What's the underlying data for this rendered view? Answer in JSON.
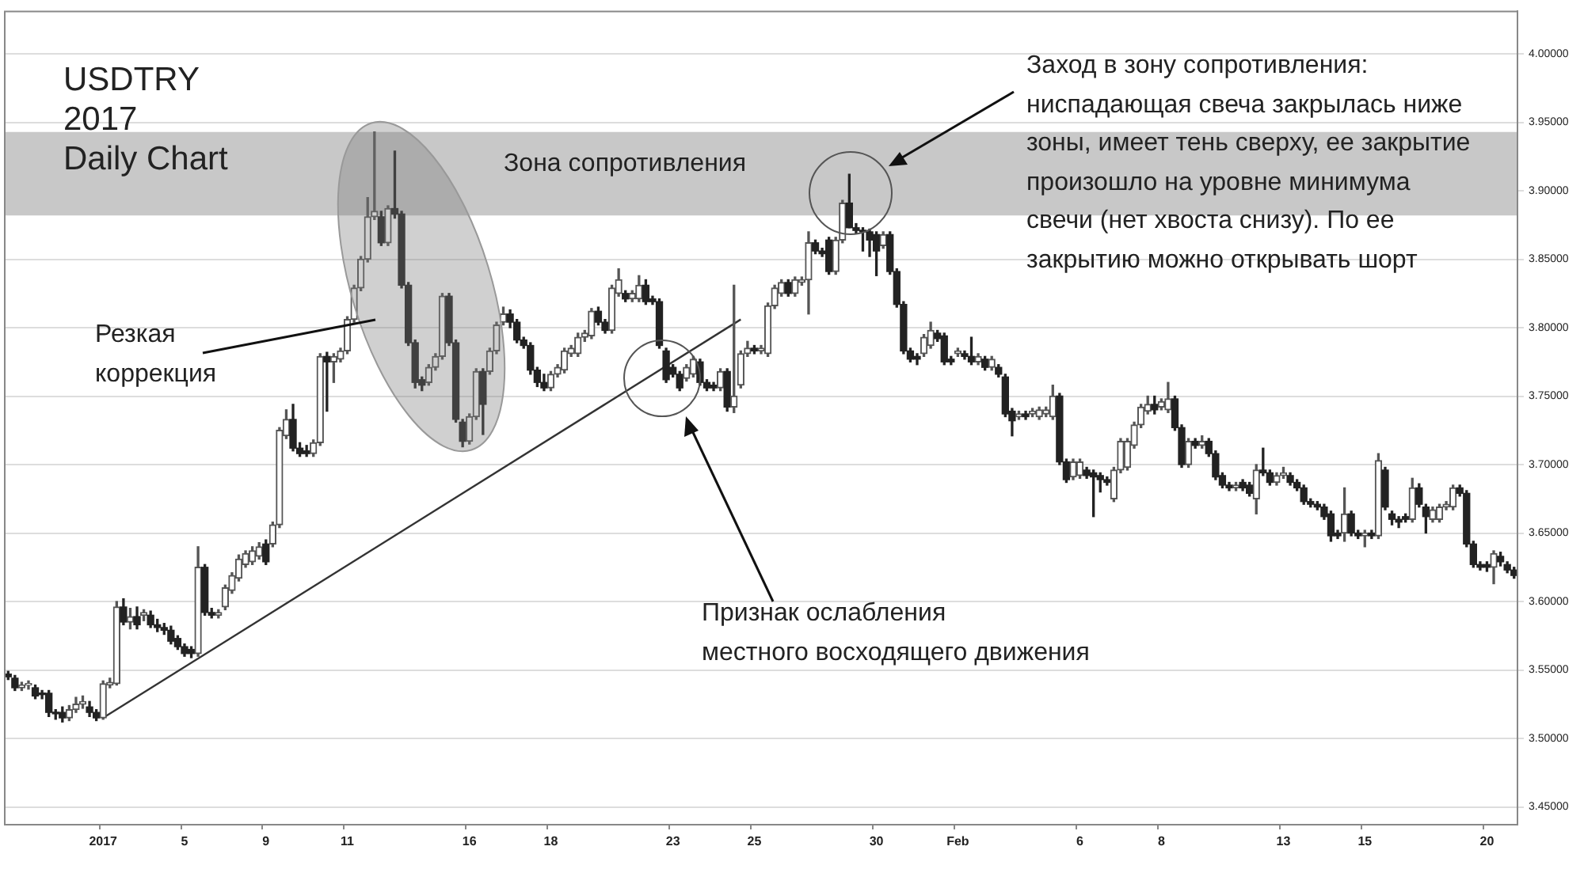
{
  "chart_data": {
    "type": "candlestick",
    "title": "USDTRY\n2017\nDaily Chart",
    "categories": [
      null,
      null,
      null,
      null,
      null,
      null,
      null,
      null,
      null,
      null,
      null,
      null,
      null,
      null,
      "2017",
      null,
      null,
      null,
      null,
      null,
      null,
      null,
      null,
      null,
      null,
      null,
      "5",
      null,
      null,
      null,
      null,
      null,
      null,
      null,
      null,
      null,
      null,
      null,
      "9",
      null,
      null,
      null,
      null,
      null,
      null,
      null,
      null,
      null,
      null,
      null,
      "11",
      null,
      null,
      null,
      null,
      null,
      null,
      null,
      null,
      null,
      null,
      null,
      null,
      null,
      null,
      null,
      null,
      null,
      "16",
      null,
      null,
      null,
      null,
      null,
      null,
      null,
      null,
      null,
      null,
      null,
      "18",
      null,
      null,
      null,
      null,
      null,
      null,
      null,
      null,
      null,
      null,
      null,
      null,
      null,
      null,
      null,
      null,
      null,
      "23",
      null,
      null,
      null,
      null,
      null,
      null,
      null,
      null,
      null,
      null,
      null,
      "25",
      null,
      null,
      null,
      null,
      null,
      null,
      null,
      null,
      null,
      null,
      null,
      null,
      null,
      null,
      null,
      null,
      null,
      "30",
      null,
      null,
      null,
      null,
      null,
      null,
      null,
      null,
      null,
      null,
      null,
      "Feb",
      null,
      null,
      null,
      null,
      null,
      null,
      null,
      null,
      null,
      null,
      null,
      null,
      null,
      null,
      null,
      null,
      null,
      "6",
      null,
      null,
      null,
      null,
      null,
      null,
      null,
      null,
      null,
      null,
      null,
      "8",
      null,
      null,
      null,
      null,
      null,
      null,
      null,
      null,
      null,
      null,
      null,
      null,
      null,
      null,
      null,
      null,
      null,
      "13",
      null,
      null,
      null,
      null,
      null,
      null,
      null,
      null,
      null,
      null,
      null,
      "15",
      null,
      null,
      null,
      null,
      null,
      null,
      null,
      null,
      null,
      null,
      null,
      null,
      null,
      null,
      null,
      null,
      null,
      "20",
      null,
      null,
      null,
      null
    ],
    "colors": [
      "#222222",
      "#222222",
      "#555555",
      "#555555",
      "#222222",
      "#222222",
      "#222222",
      "#222222",
      "#222222",
      "#555555",
      "#555555",
      "#555555",
      "#222222",
      "#222222",
      "#555555",
      "#555555",
      "#555555",
      "#222222",
      "#555555",
      "#222222",
      "#555555",
      "#222222",
      "#222222",
      "#222222",
      "#222222",
      "#222222",
      "#222222",
      "#222222",
      "#555555",
      "#222222",
      "#222222",
      "#555555",
      "#555555",
      "#555555",
      "#555555",
      "#555555",
      "#555555",
      "#555555",
      "#222222",
      "#555555",
      "#555555",
      "#555555",
      "#222222",
      "#222222",
      "#222222",
      "#555555",
      "#555555",
      "#222222",
      "#555555",
      "#555555",
      "#555555",
      "#555555",
      "#555555",
      "#555555",
      "#555555",
      "#222222",
      "#555555",
      "#222222",
      "#222222",
      "#222222",
      "#222222",
      "#222222",
      "#555555",
      "#555555",
      "#555555",
      "#222222",
      "#222222",
      "#222222",
      "#555555",
      "#555555",
      "#222222",
      "#555555",
      "#555555",
      "#555555",
      "#222222",
      "#222222",
      "#222222",
      "#222222",
      "#222222",
      "#222222",
      "#555555",
      "#555555",
      "#555555",
      "#555555",
      "#555555",
      "#555555",
      "#555555",
      "#222222",
      "#222222",
      "#555555",
      "#555555",
      "#222222",
      "#555555",
      "#555555",
      "#222222",
      "#222222",
      "#222222",
      "#222222",
      "#222222",
      "#222222",
      "#555555",
      "#555555",
      "#222222",
      "#222222",
      "#222222",
      "#555555",
      "#222222",
      "#555555",
      "#555555",
      "#555555",
      "#222222",
      "#555555",
      "#555555",
      "#555555",
      "#555555",
      "#222222",
      "#555555",
      "#555555",
      "#555555",
      "#222222",
      "#222222",
      "#222222",
      "#555555",
      "#555555",
      "#222222",
      "#222222",
      "#222222",
      "#222222",
      "#222222",
      "#555555",
      "#222222",
      "#222222",
      "#222222",
      "#222222",
      "#222222",
      "#555555",
      "#555555",
      "#222222",
      "#222222",
      "#222222",
      "#555555",
      "#222222",
      "#222222",
      "#555555",
      "#222222",
      "#555555",
      "#222222",
      "#222222",
      "#222222",
      "#555555",
      "#222222",
      "#555555",
      "#555555",
      "#555555",
      "#555555",
      "#222222",
      "#222222",
      "#555555",
      "#555555",
      "#222222",
      "#222222",
      "#222222",
      "#222222",
      "#555555",
      "#555555",
      "#555555",
      "#555555",
      "#555555",
      "#555555",
      "#222222",
      "#555555",
      "#555555",
      "#222222",
      "#222222",
      "#555555",
      "#222222",
      "#555555",
      "#222222",
      "#222222",
      "#222222",
      "#222222",
      "#555555",
      "#222222",
      "#222222",
      "#555555",
      "#222222",
      "#222222",
      "#555555",
      "#555555",
      "#222222",
      "#222222",
      "#222222",
      "#222222",
      "#222222",
      "#222222",
      "#222222",
      "#222222",
      "#555555",
      "#222222",
      "#222222",
      "#555555",
      "#222222",
      "#555555",
      "#222222",
      "#222222",
      "#222222",
      "#222222",
      "#555555",
      "#222222",
      "#222222",
      "#555555",
      "#555555",
      "#555555",
      "#555555",
      "#222222",
      "#222222",
      "#222222",
      "#222222",
      "#222222",
      "#555555",
      "#222222",
      "#222222",
      "#222222"
    ],
    "ohlc": [
      [
        3.547,
        3.549,
        3.543,
        3.545
      ],
      [
        3.544,
        3.546,
        3.535,
        3.537
      ],
      [
        3.537,
        3.541,
        3.535,
        3.539
      ],
      [
        3.539,
        3.542,
        3.536,
        3.54
      ],
      [
        3.537,
        3.539,
        3.529,
        3.531
      ],
      [
        3.533,
        3.535,
        3.529,
        3.532
      ],
      [
        3.533,
        3.535,
        3.516,
        3.519
      ],
      [
        3.519,
        3.521,
        3.514,
        3.518
      ],
      [
        3.519,
        3.523,
        3.512,
        3.515
      ],
      [
        3.515,
        3.524,
        3.513,
        3.521
      ],
      [
        3.521,
        3.53,
        3.519,
        3.525
      ],
      [
        3.525,
        3.531,
        3.522,
        3.527
      ],
      [
        3.523,
        3.527,
        3.516,
        3.519
      ],
      [
        3.519,
        3.521,
        3.513,
        3.515
      ],
      [
        3.515,
        3.542,
        3.514,
        3.54
      ],
      [
        3.539,
        3.544,
        3.537,
        3.541
      ],
      [
        3.54,
        3.6,
        3.539,
        3.596
      ],
      [
        3.596,
        3.602,
        3.583,
        3.585
      ],
      [
        3.585,
        3.595,
        3.58,
        3.589
      ],
      [
        3.589,
        3.596,
        3.58,
        3.583
      ],
      [
        3.59,
        3.594,
        3.586,
        3.592
      ],
      [
        3.59,
        3.593,
        3.581,
        3.583
      ],
      [
        3.583,
        3.587,
        3.578,
        3.581
      ],
      [
        3.581,
        3.584,
        3.576,
        3.579
      ],
      [
        3.579,
        3.582,
        3.569,
        3.571
      ],
      [
        3.573,
        3.575,
        3.565,
        3.567
      ],
      [
        3.567,
        3.569,
        3.56,
        3.562
      ],
      [
        3.565,
        3.567,
        3.559,
        3.562
      ],
      [
        3.562,
        3.64,
        3.56,
        3.625
      ],
      [
        3.625,
        3.627,
        3.59,
        3.592
      ],
      [
        3.592,
        3.595,
        3.588,
        3.59
      ],
      [
        3.59,
        3.594,
        3.588,
        3.592
      ],
      [
        3.596,
        3.612,
        3.594,
        3.61
      ],
      [
        3.608,
        3.621,
        3.606,
        3.619
      ],
      [
        3.617,
        3.634,
        3.615,
        3.631
      ],
      [
        3.627,
        3.637,
        3.625,
        3.635
      ],
      [
        3.629,
        3.64,
        3.627,
        3.637
      ],
      [
        3.633,
        3.643,
        3.631,
        3.64
      ],
      [
        3.642,
        3.645,
        3.627,
        3.629
      ],
      [
        3.642,
        3.658,
        3.64,
        3.656
      ],
      [
        3.656,
        3.727,
        3.654,
        3.725
      ],
      [
        3.721,
        3.74,
        3.719,
        3.733
      ],
      [
        3.733,
        3.744,
        3.71,
        3.712
      ],
      [
        3.712,
        3.716,
        3.706,
        3.708
      ],
      [
        3.71,
        3.714,
        3.706,
        3.708
      ],
      [
        3.708,
        3.718,
        3.706,
        3.716
      ],
      [
        3.716,
        3.781,
        3.714,
        3.779
      ],
      [
        3.779,
        3.782,
        3.739,
        3.775
      ],
      [
        3.775,
        3.781,
        3.76,
        3.779
      ],
      [
        3.777,
        3.785,
        3.775,
        3.783
      ],
      [
        3.783,
        3.808,
        3.781,
        3.806
      ],
      [
        3.806,
        3.831,
        3.804,
        3.829
      ],
      [
        3.829,
        3.852,
        3.827,
        3.85
      ],
      [
        3.85,
        3.895,
        3.848,
        3.881
      ],
      [
        3.881,
        3.943,
        3.879,
        3.885
      ],
      [
        3.881,
        3.885,
        3.86,
        3.862
      ],
      [
        3.862,
        3.889,
        3.86,
        3.887
      ],
      [
        3.887,
        3.929,
        3.88,
        3.883
      ],
      [
        3.883,
        3.885,
        3.829,
        3.831
      ],
      [
        3.831,
        3.833,
        3.787,
        3.789
      ],
      [
        3.789,
        3.791,
        3.756,
        3.76
      ],
      [
        3.762,
        3.764,
        3.754,
        3.758
      ],
      [
        3.76,
        3.773,
        3.758,
        3.771
      ],
      [
        3.771,
        3.781,
        3.769,
        3.779
      ],
      [
        3.779,
        3.825,
        3.777,
        3.823
      ],
      [
        3.823,
        3.825,
        3.787,
        3.789
      ],
      [
        3.789,
        3.791,
        3.731,
        3.733
      ],
      [
        3.731,
        3.733,
        3.713,
        3.717
      ],
      [
        3.717,
        3.737,
        3.715,
        3.735
      ],
      [
        3.735,
        3.77,
        3.733,
        3.768
      ],
      [
        3.768,
        3.77,
        3.722,
        3.744
      ],
      [
        3.768,
        3.785,
        3.766,
        3.783
      ],
      [
        3.783,
        3.804,
        3.781,
        3.802
      ],
      [
        3.804,
        3.815,
        3.802,
        3.81
      ],
      [
        3.81,
        3.813,
        3.8,
        3.804
      ],
      [
        3.804,
        3.806,
        3.789,
        3.791
      ],
      [
        3.791,
        3.793,
        3.785,
        3.787
      ],
      [
        3.787,
        3.789,
        3.766,
        3.769
      ],
      [
        3.769,
        3.771,
        3.757,
        3.76
      ],
      [
        3.76,
        3.766,
        3.754,
        3.756
      ],
      [
        3.756,
        3.768,
        3.754,
        3.766
      ],
      [
        3.766,
        3.773,
        3.764,
        3.771
      ],
      [
        3.769,
        3.785,
        3.767,
        3.783
      ],
      [
        3.781,
        3.787,
        3.779,
        3.785
      ],
      [
        3.781,
        3.796,
        3.779,
        3.793
      ],
      [
        3.793,
        3.798,
        3.79,
        3.796
      ],
      [
        3.794,
        3.814,
        3.792,
        3.812
      ],
      [
        3.812,
        3.815,
        3.802,
        3.804
      ],
      [
        3.804,
        3.806,
        3.796,
        3.798
      ],
      [
        3.798,
        3.831,
        3.796,
        3.829
      ],
      [
        3.825,
        3.843,
        3.823,
        3.835
      ],
      [
        3.825,
        3.827,
        3.819,
        3.821
      ],
      [
        3.821,
        3.827,
        3.819,
        3.825
      ],
      [
        3.821,
        3.838,
        3.819,
        3.831
      ],
      [
        3.831,
        3.835,
        3.817,
        3.819
      ],
      [
        3.821,
        3.823,
        3.817,
        3.819
      ],
      [
        3.819,
        3.821,
        3.785,
        3.787
      ],
      [
        3.783,
        3.785,
        3.76,
        3.762
      ],
      [
        3.771,
        3.773,
        3.764,
        3.766
      ],
      [
        3.766,
        3.768,
        3.754,
        3.756
      ],
      [
        3.763,
        3.773,
        3.761,
        3.771
      ],
      [
        3.766,
        3.779,
        3.764,
        3.777
      ],
      [
        3.775,
        3.777,
        3.758,
        3.76
      ],
      [
        3.76,
        3.762,
        3.754,
        3.756
      ],
      [
        3.758,
        3.76,
        3.754,
        3.756
      ],
      [
        3.756,
        3.77,
        3.754,
        3.768
      ],
      [
        3.768,
        3.77,
        3.739,
        3.742
      ],
      [
        3.742,
        3.831,
        3.738,
        3.75
      ],
      [
        3.758,
        3.783,
        3.756,
        3.781
      ],
      [
        3.781,
        3.79,
        3.779,
        3.785
      ],
      [
        3.785,
        3.787,
        3.781,
        3.783
      ],
      [
        3.783,
        3.787,
        3.781,
        3.785
      ],
      [
        3.781,
        3.818,
        3.779,
        3.816
      ],
      [
        3.816,
        3.831,
        3.814,
        3.829
      ],
      [
        3.825,
        3.835,
        3.823,
        3.833
      ],
      [
        3.833,
        3.835,
        3.823,
        3.825
      ],
      [
        3.825,
        3.837,
        3.823,
        3.835
      ],
      [
        3.833,
        3.837,
        3.831,
        3.835
      ],
      [
        3.835,
        3.87,
        3.81,
        3.862
      ],
      [
        3.862,
        3.864,
        3.854,
        3.856
      ],
      [
        3.856,
        3.858,
        3.852,
        3.854
      ],
      [
        3.864,
        3.866,
        3.839,
        3.841
      ],
      [
        3.841,
        3.866,
        3.839,
        3.864
      ],
      [
        3.864,
        3.893,
        3.862,
        3.891
      ],
      [
        3.891,
        3.912,
        3.873,
        3.873
      ],
      [
        3.873,
        3.876,
        3.869,
        3.871
      ],
      [
        3.871,
        3.873,
        3.856,
        3.87
      ],
      [
        3.87,
        3.872,
        3.852,
        3.864
      ],
      [
        3.868,
        3.87,
        3.838,
        3.856
      ],
      [
        3.86,
        3.87,
        3.858,
        3.868
      ],
      [
        3.868,
        3.87,
        3.839,
        3.841
      ],
      [
        3.841,
        3.843,
        3.815,
        3.817
      ],
      [
        3.817,
        3.819,
        3.781,
        3.783
      ],
      [
        3.783,
        3.785,
        3.775,
        3.777
      ],
      [
        3.779,
        3.781,
        3.773,
        3.777
      ],
      [
        3.781,
        3.795,
        3.779,
        3.793
      ],
      [
        3.787,
        3.804,
        3.785,
        3.798
      ],
      [
        3.796,
        3.798,
        3.79,
        3.792
      ],
      [
        3.794,
        3.796,
        3.773,
        3.775
      ],
      [
        3.777,
        3.779,
        3.773,
        3.775
      ],
      [
        3.781,
        3.785,
        3.779,
        3.783
      ],
      [
        3.781,
        3.783,
        3.777,
        3.779
      ],
      [
        3.779,
        3.793,
        3.773,
        3.775
      ],
      [
        3.775,
        3.781,
        3.773,
        3.779
      ],
      [
        3.777,
        3.779,
        3.769,
        3.771
      ],
      [
        3.771,
        3.779,
        3.769,
        3.777
      ],
      [
        3.771,
        3.773,
        3.764,
        3.766
      ],
      [
        3.764,
        3.766,
        3.735,
        3.737
      ],
      [
        3.739,
        3.741,
        3.721,
        3.732
      ],
      [
        3.735,
        3.739,
        3.733,
        3.737
      ],
      [
        3.737,
        3.739,
        3.733,
        3.735
      ],
      [
        3.737,
        3.741,
        3.735,
        3.739
      ],
      [
        3.735,
        3.742,
        3.733,
        3.74
      ],
      [
        3.737,
        3.742,
        3.735,
        3.74
      ],
      [
        3.735,
        3.758,
        3.733,
        3.75
      ],
      [
        3.75,
        3.752,
        3.7,
        3.702
      ],
      [
        3.702,
        3.704,
        3.687,
        3.689
      ],
      [
        3.691,
        3.704,
        3.689,
        3.702
      ],
      [
        3.692,
        3.704,
        3.69,
        3.702
      ],
      [
        3.696,
        3.698,
        3.69,
        3.692
      ],
      [
        3.694,
        3.696,
        3.662,
        3.691
      ],
      [
        3.692,
        3.694,
        3.68,
        3.689
      ],
      [
        3.689,
        3.691,
        3.685,
        3.687
      ],
      [
        3.675,
        3.698,
        3.673,
        3.696
      ],
      [
        3.696,
        3.719,
        3.694,
        3.717
      ],
      [
        3.698,
        3.719,
        3.696,
        3.717
      ],
      [
        3.714,
        3.731,
        3.712,
        3.729
      ],
      [
        3.729,
        3.744,
        3.727,
        3.742
      ],
      [
        3.739,
        3.75,
        3.737,
        3.744
      ],
      [
        3.744,
        3.75,
        3.737,
        3.74
      ],
      [
        3.742,
        3.748,
        3.74,
        3.746
      ],
      [
        3.74,
        3.76,
        3.738,
        3.748
      ],
      [
        3.748,
        3.75,
        3.725,
        3.727
      ],
      [
        3.727,
        3.729,
        3.698,
        3.7
      ],
      [
        3.7,
        3.719,
        3.698,
        3.717
      ],
      [
        3.717,
        3.719,
        3.712,
        3.714
      ],
      [
        3.714,
        3.721,
        3.712,
        3.717
      ],
      [
        3.717,
        3.719,
        3.706,
        3.708
      ],
      [
        3.708,
        3.71,
        3.689,
        3.691
      ],
      [
        3.692,
        3.694,
        3.683,
        3.685
      ],
      [
        3.685,
        3.687,
        3.681,
        3.683
      ],
      [
        3.683,
        3.687,
        3.681,
        3.685
      ],
      [
        3.687,
        3.689,
        3.681,
        3.683
      ],
      [
        3.685,
        3.687,
        3.677,
        3.679
      ],
      [
        3.675,
        3.7,
        3.664,
        3.696
      ],
      [
        3.696,
        3.712,
        3.692,
        3.694
      ],
      [
        3.694,
        3.696,
        3.685,
        3.687
      ],
      [
        3.687,
        3.694,
        3.685,
        3.692
      ],
      [
        3.692,
        3.698,
        3.69,
        3.694
      ],
      [
        3.692,
        3.694,
        3.685,
        3.687
      ],
      [
        3.687,
        3.689,
        3.681,
        3.683
      ],
      [
        3.683,
        3.685,
        3.671,
        3.673
      ],
      [
        3.673,
        3.675,
        3.669,
        3.671
      ],
      [
        3.671,
        3.673,
        3.667,
        3.669
      ],
      [
        3.669,
        3.671,
        3.66,
        3.662
      ],
      [
        3.664,
        3.666,
        3.644,
        3.648
      ],
      [
        3.65,
        3.652,
        3.646,
        3.648
      ],
      [
        3.65,
        3.683,
        3.644,
        3.664
      ],
      [
        3.664,
        3.666,
        3.648,
        3.65
      ],
      [
        3.65,
        3.652,
        3.646,
        3.648
      ],
      [
        3.648,
        3.652,
        3.64,
        3.65
      ],
      [
        3.65,
        3.652,
        3.646,
        3.648
      ],
      [
        3.648,
        3.708,
        3.646,
        3.703
      ],
      [
        3.696,
        3.698,
        3.667,
        3.669
      ],
      [
        3.664,
        3.666,
        3.656,
        3.66
      ],
      [
        3.66,
        3.662,
        3.654,
        3.658
      ],
      [
        3.662,
        3.664,
        3.658,
        3.66
      ],
      [
        3.66,
        3.69,
        3.658,
        3.683
      ],
      [
        3.683,
        3.686,
        3.669,
        3.671
      ],
      [
        3.669,
        3.671,
        3.65,
        3.662
      ],
      [
        3.66,
        3.669,
        3.658,
        3.667
      ],
      [
        3.66,
        3.671,
        3.658,
        3.669
      ],
      [
        3.669,
        3.673,
        3.667,
        3.671
      ],
      [
        3.669,
        3.685,
        3.667,
        3.683
      ],
      [
        3.683,
        3.685,
        3.677,
        3.679
      ],
      [
        3.679,
        3.681,
        3.64,
        3.642
      ],
      [
        3.642,
        3.644,
        3.625,
        3.627
      ],
      [
        3.627,
        3.629,
        3.623,
        3.625
      ],
      [
        3.627,
        3.629,
        3.622,
        3.625
      ],
      [
        3.625,
        3.637,
        3.613,
        3.635
      ],
      [
        3.633,
        3.636,
        3.626,
        3.629
      ],
      [
        3.627,
        3.629,
        3.621,
        3.623
      ],
      [
        3.623,
        3.625,
        3.617,
        3.619
      ]
    ],
    "series": [
      {
        "type": "line",
        "color": "#333333",
        "values": [
          null,
          null,
          null,
          null,
          null,
          null,
          null,
          null,
          null,
          null,
          null,
          null,
          null,
          null,
          3.515,
          null,
          null,
          null,
          null,
          null,
          null,
          null,
          null,
          null,
          null,
          null,
          null,
          null,
          null,
          null,
          null,
          null,
          null,
          null,
          null,
          null,
          null,
          null,
          null,
          null,
          null,
          null,
          null,
          null,
          null,
          null,
          null,
          null,
          null,
          null,
          null,
          null,
          null,
          null,
          null,
          null,
          null,
          null,
          null,
          null,
          null,
          null,
          null,
          null,
          null,
          null,
          null,
          null,
          null,
          null,
          null,
          null,
          null,
          null,
          null,
          null,
          null,
          null,
          null,
          null,
          null,
          null,
          null,
          null,
          null,
          null,
          null,
          null,
          null,
          null,
          null,
          null,
          null,
          null,
          null,
          null,
          null,
          null,
          null,
          null,
          null,
          null,
          null,
          null,
          null,
          null,
          null,
          null,
          3.806,
          null,
          null,
          null,
          null,
          null,
          null,
          null,
          null,
          null,
          null,
          null,
          null,
          null,
          null,
          null,
          null,
          null,
          null,
          null,
          null,
          null,
          null,
          null,
          null,
          null,
          null,
          null,
          null,
          null,
          null,
          null,
          null,
          null,
          null,
          null,
          null,
          null,
          null,
          null,
          null,
          null,
          null,
          null,
          null,
          null,
          null,
          null,
          null,
          null,
          null,
          null,
          null,
          null,
          null,
          null,
          null,
          null,
          null,
          null,
          null,
          null,
          null,
          null,
          null,
          null,
          null,
          null,
          null,
          null,
          null,
          null,
          null,
          null,
          null,
          null,
          null,
          null,
          null,
          null,
          null,
          null,
          null,
          null,
          null,
          null,
          null,
          null,
          null,
          null,
          null,
          null,
          null,
          null,
          null,
          null,
          null,
          null,
          null,
          null,
          null,
          null,
          null,
          null,
          null,
          null,
          null,
          null,
          null,
          null,
          null,
          null,
          null,
          null,
          null
        ]
      }
    ],
    "ylim": [
      3.437,
      4.031
    ],
    "yticks": [
      {
        "value": 3.45,
        "label": "3.45000"
      },
      {
        "value": 3.5,
        "label": "3.50000"
      },
      {
        "value": 3.55,
        "label": "3.55000"
      },
      {
        "value": 3.6,
        "label": "3.60000"
      },
      {
        "value": 3.65,
        "label": "3.65000"
      },
      {
        "value": 3.7,
        "label": "3.70000"
      },
      {
        "value": 3.75,
        "label": "3.75000"
      },
      {
        "value": 3.8,
        "label": "3.80000"
      },
      {
        "value": 3.85,
        "label": "3.85000"
      },
      {
        "value": 3.9,
        "label": "3.90000"
      },
      {
        "value": 3.95,
        "label": "3.95000"
      },
      {
        "value": 4.0,
        "label": "4.00000"
      }
    ],
    "grid": "y",
    "bands": [
      {
        "axis": "y",
        "from": 3.882,
        "to": 3.943,
        "label": "Зона сопротивления",
        "color": "#c8c8c8"
      }
    ],
    "annotations": [
      "Резкая\nкоррекция",
      "Признак ослабления\nместного восходящего движения",
      "Заход в зону сопротивления:\nниспадающая свеча закрылась ниже\nзоны, имеет тень сверху, ее закрытие\nпроизошло на уровне минимума\nсвечи (нет хвоста снизу). По ее\nзакрытию можно открывать шорт"
    ]
  }
}
